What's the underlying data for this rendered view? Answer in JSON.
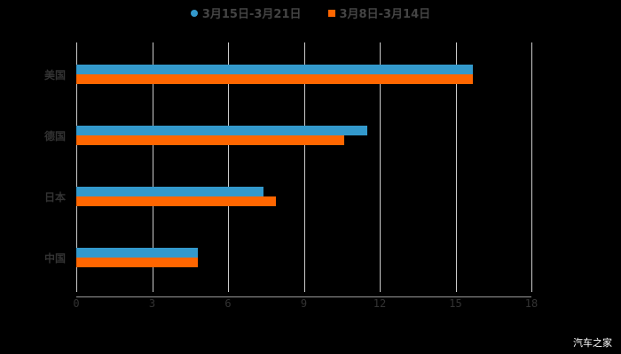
{
  "chart_data": {
    "type": "bar",
    "orientation": "horizontal",
    "title": "",
    "categories": [
      "美国",
      "德国",
      "日本",
      "中国"
    ],
    "series": [
      {
        "name": "3月15日-3月21日",
        "color": "#3399cc",
        "values": [
          15.7,
          11.5,
          7.4,
          4.8
        ]
      },
      {
        "name": "3月8日-3月14日",
        "color": "#ff6600",
        "values": [
          15.7,
          10.6,
          7.9,
          4.8
        ]
      }
    ],
    "xlabel": "",
    "ylabel": "",
    "xlim": [
      0,
      18
    ],
    "xticks": [
      "0",
      "3",
      "6",
      "9",
      "12",
      "15",
      "18"
    ],
    "grid": true,
    "legend_position": "top"
  },
  "legend": {
    "s1": "3月15日-3月21日",
    "s2": "3月8日-3月14日"
  },
  "watermark": "汽车之家"
}
